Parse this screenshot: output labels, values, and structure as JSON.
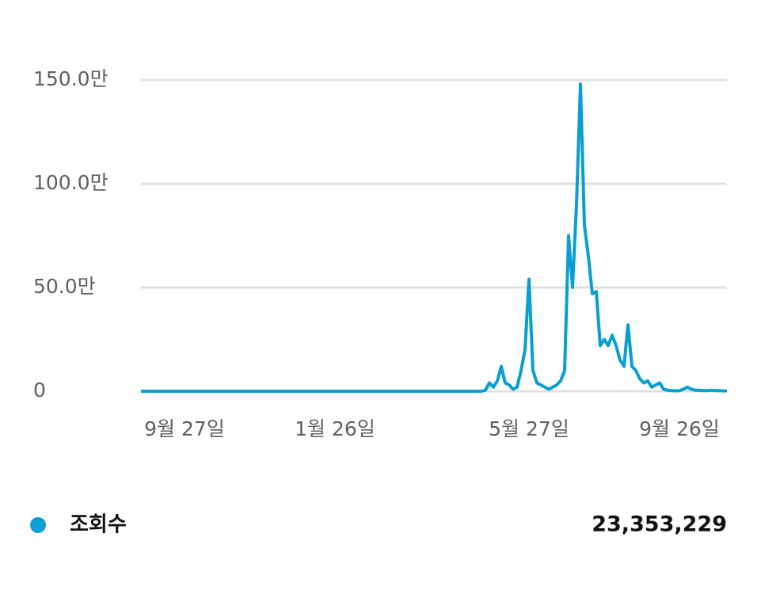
{
  "chart_data": {
    "type": "line",
    "categories": [
      null,
      null,
      null,
      null,
      null,
      null,
      null,
      null,
      null,
      null,
      null,
      "9월 27일",
      null,
      null,
      null,
      null,
      null,
      null,
      null,
      null,
      null,
      null,
      null,
      null,
      null,
      null,
      null,
      null,
      null,
      null,
      null,
      null,
      null,
      null,
      null,
      null,
      null,
      null,
      null,
      null,
      null,
      null,
      null,
      null,
      null,
      null,
      null,
      null,
      null,
      "1월 26일",
      null,
      null,
      null,
      null,
      null,
      null,
      null,
      null,
      null,
      null,
      null,
      null,
      null,
      null,
      null,
      null,
      null,
      null,
      null,
      null,
      null,
      null,
      null,
      null,
      null,
      null,
      null,
      null,
      null,
      null,
      null,
      null,
      null,
      null,
      null,
      null,
      null,
      null,
      null,
      null,
      null,
      null,
      null,
      null,
      null,
      null,
      null,
      null,
      "5월 27일",
      null,
      null,
      null,
      null,
      null,
      null,
      null,
      null,
      null,
      null,
      null,
      null,
      null,
      null,
      null,
      null,
      null,
      null,
      null,
      null,
      null,
      null,
      null,
      null,
      null,
      null,
      null,
      null,
      null,
      null,
      null,
      null,
      null,
      null,
      null,
      null,
      null,
      "9월 26일",
      null,
      null,
      null,
      null,
      null,
      null,
      null,
      null,
      null,
      null,
      null,
      null
    ],
    "series": [
      {
        "name": "조회수",
        "color": "#0a9fd0",
        "values": [
          0,
          0,
          0,
          0,
          0,
          0,
          0,
          0,
          0,
          0,
          0,
          0,
          0,
          0,
          0,
          0,
          0,
          0,
          0,
          0,
          0,
          0,
          0,
          0,
          0,
          0,
          0,
          0,
          0,
          0,
          0,
          0,
          0,
          0,
          0,
          0,
          0,
          0,
          0,
          0,
          0,
          0,
          0,
          0,
          0,
          0,
          0,
          0,
          0,
          0,
          0,
          0,
          0,
          0,
          0,
          0,
          0,
          0,
          0,
          0,
          0,
          0,
          0,
          0,
          0,
          0,
          0,
          0,
          0,
          0,
          0,
          0,
          0,
          0,
          0,
          0,
          0,
          0,
          0,
          0,
          0,
          0,
          0,
          0,
          0,
          0,
          0,
          0.5,
          4,
          2,
          5,
          12,
          4,
          3,
          1,
          2,
          10,
          20,
          54,
          10,
          4,
          3,
          2,
          1,
          2,
          3,
          5,
          10,
          75,
          50,
          90,
          148,
          80,
          65,
          47,
          48,
          22,
          25,
          22,
          27,
          22,
          15,
          12,
          32,
          12,
          10,
          6,
          4,
          5,
          2,
          3,
          4,
          1,
          0.5,
          0.3,
          0.2,
          0.3,
          1,
          2,
          1,
          0.5,
          0.5,
          0.3,
          0.3,
          0.5,
          0.3,
          0.3,
          0.2,
          0.2
        ]
      }
    ],
    "total": "23,353,229",
    "ylim": [
      0,
      150
    ],
    "yticks": [
      0,
      {
        "value": 50,
        "label": "50.0만"
      },
      {
        "value": 100,
        "label": "100.0만"
      },
      {
        "value": 150,
        "label": "150.0만"
      }
    ],
    "grid": true
  }
}
